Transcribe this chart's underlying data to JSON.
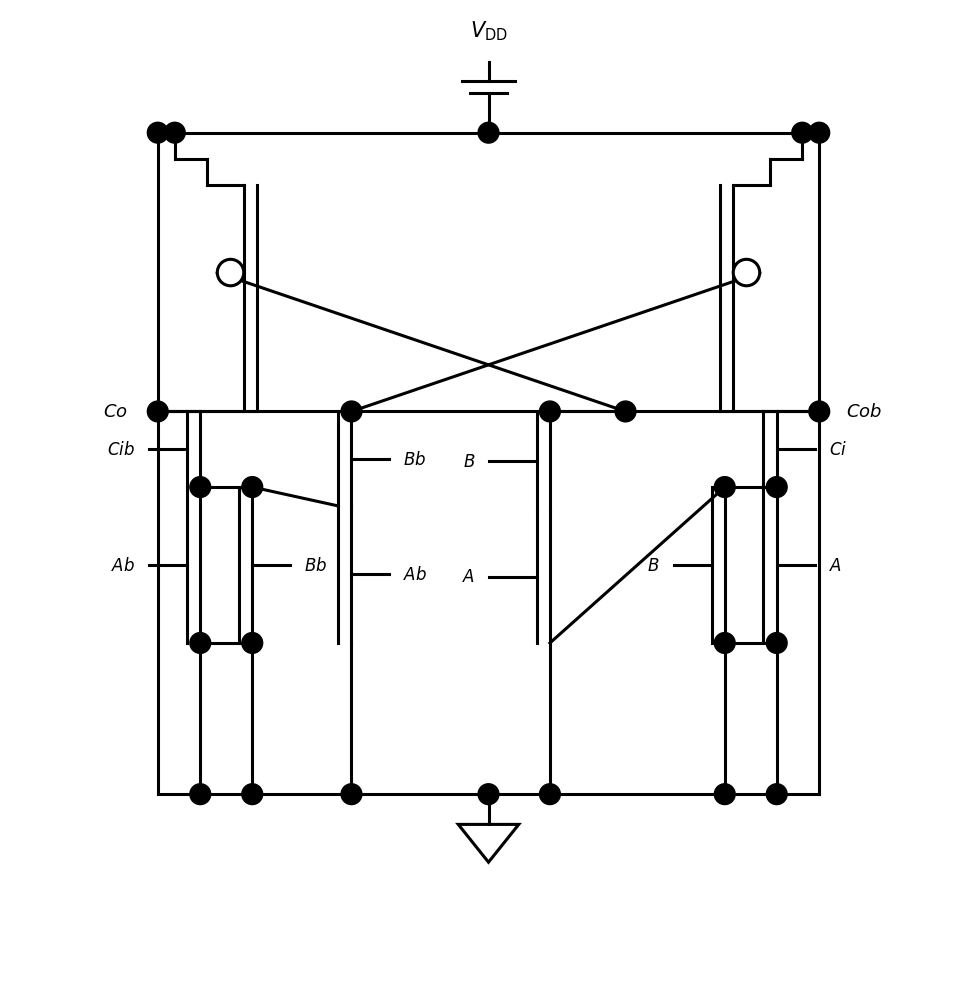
{
  "fig_w": 9.77,
  "fig_h": 9.95,
  "lw": 2.2,
  "dot_r": 0.11,
  "oc_r": 0.14,
  "YT": 9.1,
  "YCO": 6.1,
  "YBR": 2.1,
  "XLL": 1.5,
  "XRR": 8.5,
  "xvdd": 5.0,
  "xgnd": 5.0
}
